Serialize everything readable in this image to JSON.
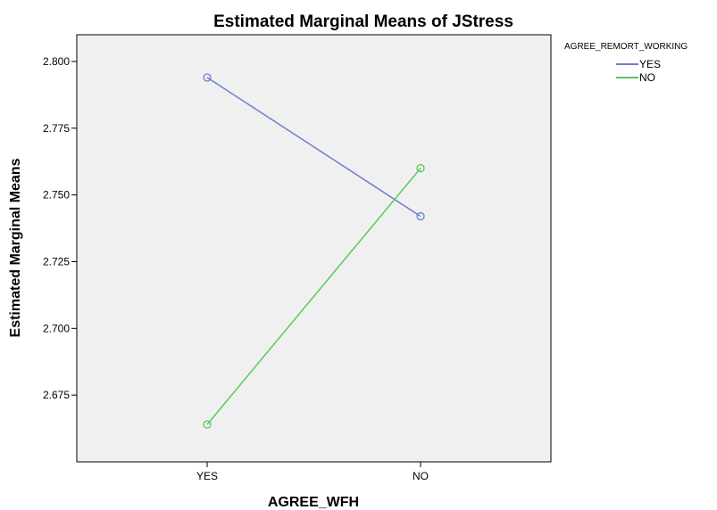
{
  "chart_data": {
    "type": "line",
    "title": "Estimated Marginal Means of JStress",
    "xlabel": "AGREE_WFH",
    "ylabel": "Estimated Marginal Means",
    "categories": [
      "YES",
      "NO"
    ],
    "ylim": [
      2.65,
      2.81
    ],
    "yticks": [
      "2.800",
      "2.775",
      "2.750",
      "2.725",
      "2.700",
      "2.675"
    ],
    "ytick_values": [
      2.8,
      2.775,
      2.75,
      2.725,
      2.7,
      2.675
    ],
    "legend_title": "AGREE_REMORT_WORKING",
    "legend_position": "top-right, outside plot",
    "grid": false,
    "plot_background": "#f0f0f0",
    "series": [
      {
        "name": "YES",
        "values": [
          2.794,
          2.742
        ],
        "color": "#6b7fcf"
      },
      {
        "name": "NO",
        "values": [
          2.664,
          2.76
        ],
        "color": "#57c95a"
      }
    ]
  }
}
